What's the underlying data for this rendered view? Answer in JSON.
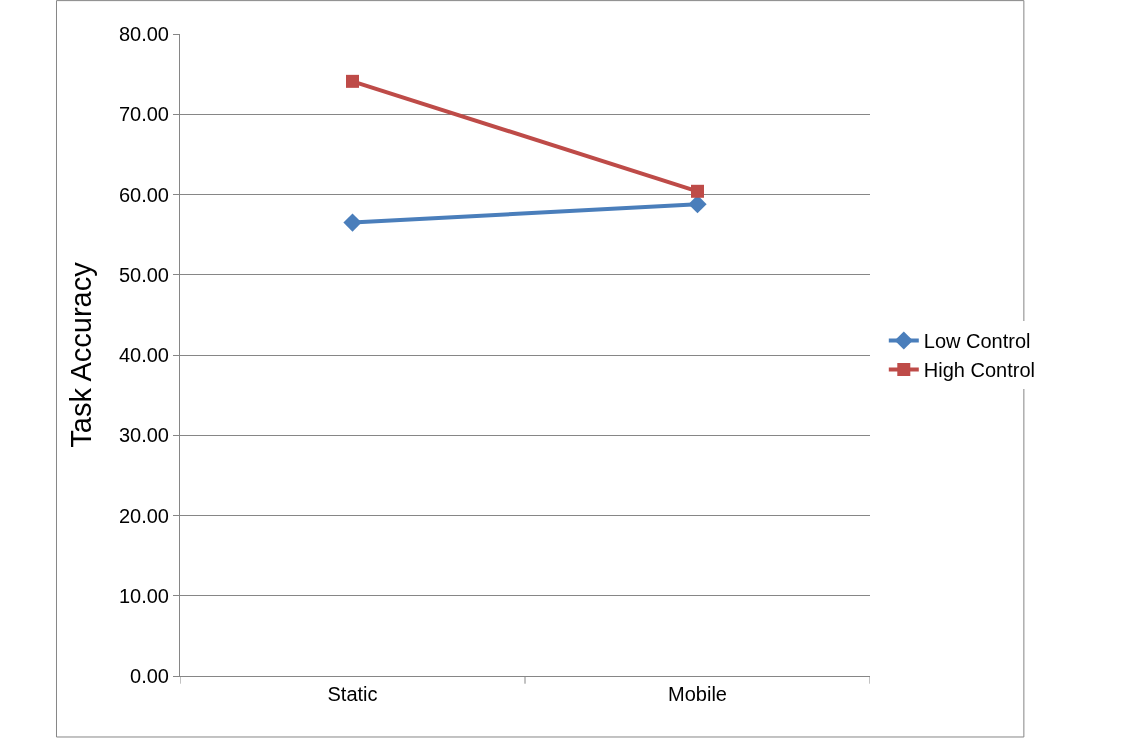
{
  "chart_data": {
    "type": "line",
    "ylabel": "Task Accuracy",
    "categories": [
      "Static",
      "Mobile"
    ],
    "series": [
      {
        "name": "Low Control",
        "color": "#4a7ebb",
        "marker": "diamond",
        "values": [
          56.5,
          58.8
        ]
      },
      {
        "name": "High Control",
        "color": "#be4b48",
        "marker": "square",
        "values": [
          74.1,
          60.4
        ]
      }
    ],
    "ylim": [
      0,
      80
    ],
    "yticks": [
      {
        "value": 0,
        "label": "0.00"
      },
      {
        "value": 10,
        "label": "10.00"
      },
      {
        "value": 20,
        "label": "20.00"
      },
      {
        "value": 30,
        "label": "30.00"
      },
      {
        "value": 40,
        "label": "40.00"
      },
      {
        "value": 50,
        "label": "50.00"
      },
      {
        "value": 60,
        "label": "60.00"
      },
      {
        "value": 70,
        "label": "70.00"
      },
      {
        "value": 80,
        "label": "80.00"
      }
    ],
    "grid": "y",
    "legend": "right",
    "line_style": "solid"
  }
}
